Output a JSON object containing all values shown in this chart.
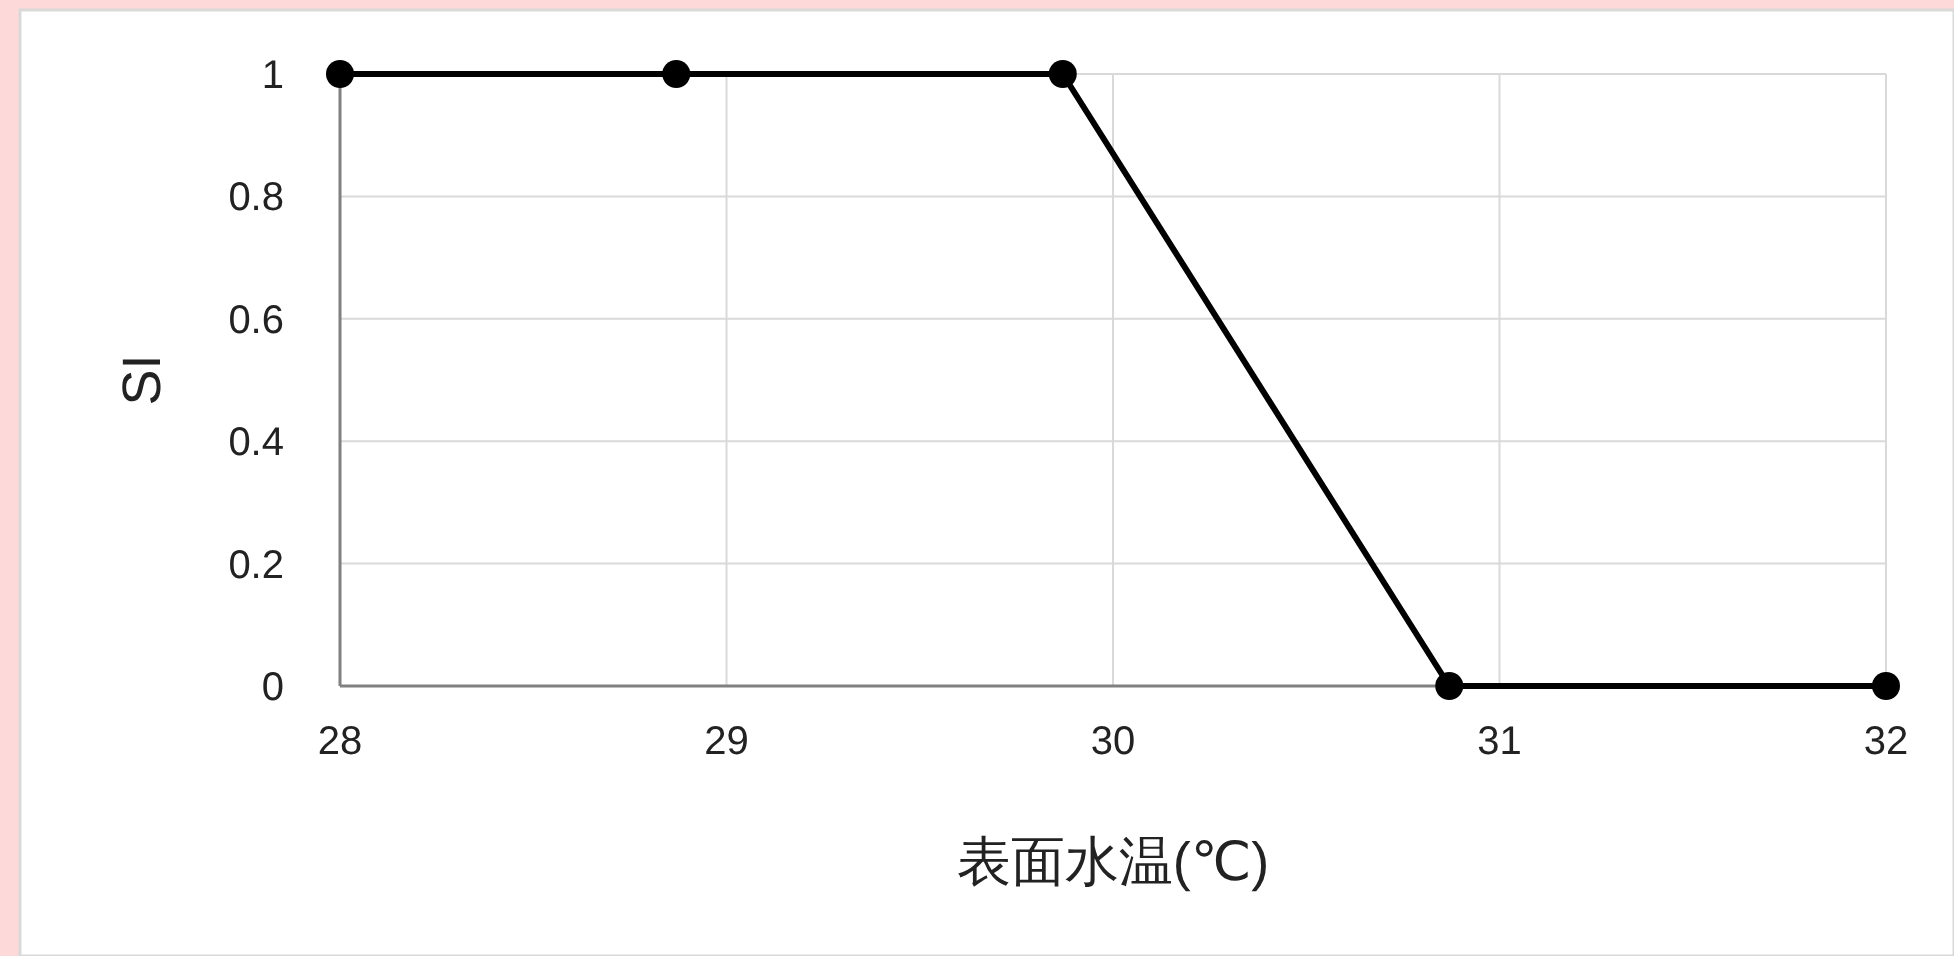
{
  "chart_data": {
    "type": "line",
    "xlabel": "表面水温(℃)",
    "ylabel": "SI",
    "x": [
      28,
      28.87,
      29.87,
      30.87,
      32
    ],
    "series": [
      {
        "color": "#000000",
        "values": [
          1,
          1,
          1,
          0,
          0
        ]
      }
    ],
    "xlim": [
      28,
      32
    ],
    "xticks": [
      28,
      29,
      30,
      31,
      32
    ],
    "ylim": [
      0,
      1
    ],
    "yticks": [
      0,
      0.2,
      0.4,
      0.6,
      0.8,
      1
    ],
    "grid": true,
    "marker": "circle",
    "line_style": "solid"
  }
}
